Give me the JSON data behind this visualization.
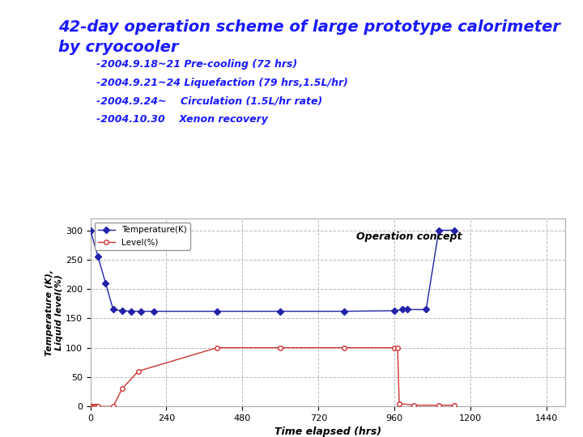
{
  "title_line1": "42-day operation scheme of large prototype calorimeter",
  "title_line2": "by cryocooler",
  "title_color": "#1a1aff",
  "title_fontsize": 14,
  "annotations": [
    "-2004.9.18~21 Pre-cooling (72 hrs)",
    "-2004.9.21~24 Liquefaction (79 hrs,1.5L/hr)",
    "-2004.9.24~    Circulation (1.5L/hr rate)",
    "-2004.10.30    Xenon recovery"
  ],
  "annotation_fontsize": 9,
  "annotation_color": "#1a1aff",
  "temp_x": [
    0,
    24,
    48,
    72,
    100,
    130,
    160,
    200,
    400,
    600,
    800,
    960,
    985,
    1000,
    1060,
    1100,
    1150
  ],
  "temp_y": [
    300,
    255,
    210,
    165,
    163,
    162,
    162,
    162,
    162,
    162,
    162,
    163,
    165,
    165,
    165,
    300,
    300
  ],
  "temp_color": "#2222aa",
  "temp_marker": "D",
  "temp_markersize": 4,
  "temp_linewidth": 1.0,
  "level_x": [
    0,
    5,
    10,
    15,
    20,
    25,
    72,
    100,
    151,
    400,
    600,
    800,
    960,
    970,
    975,
    1020,
    1100,
    1150
  ],
  "level_y": [
    0,
    0,
    0,
    0,
    0,
    0,
    0,
    30,
    60,
    100,
    100,
    100,
    100,
    100,
    5,
    2,
    2,
    2
  ],
  "level_color": "#cc3333",
  "level_marker": "o",
  "level_markersize": 4,
  "level_linewidth": 1.0,
  "xlabel": "Time elapsed (hrs)",
  "ylabel": "Temperature (K),\nLiquid level(%)",
  "xlim": [
    0,
    1500
  ],
  "ylim": [
    0,
    320
  ],
  "xticks": [
    0,
    240,
    480,
    720,
    960,
    1200,
    1440
  ],
  "yticks": [
    0,
    50,
    100,
    150,
    200,
    250,
    300
  ],
  "grid_color": "#bbbbbb",
  "grid_style": "--",
  "legend_labels": [
    "Temperature(K)",
    "Level(%)"
  ],
  "op_concept_text": "Operation concept",
  "plot_bg": "#ffffff",
  "fig_bg": "#ffffff",
  "dec_blue_color": "#2244aa",
  "dec_yellow_color": "#ffcc00",
  "dec_red_color": "#cc2222"
}
